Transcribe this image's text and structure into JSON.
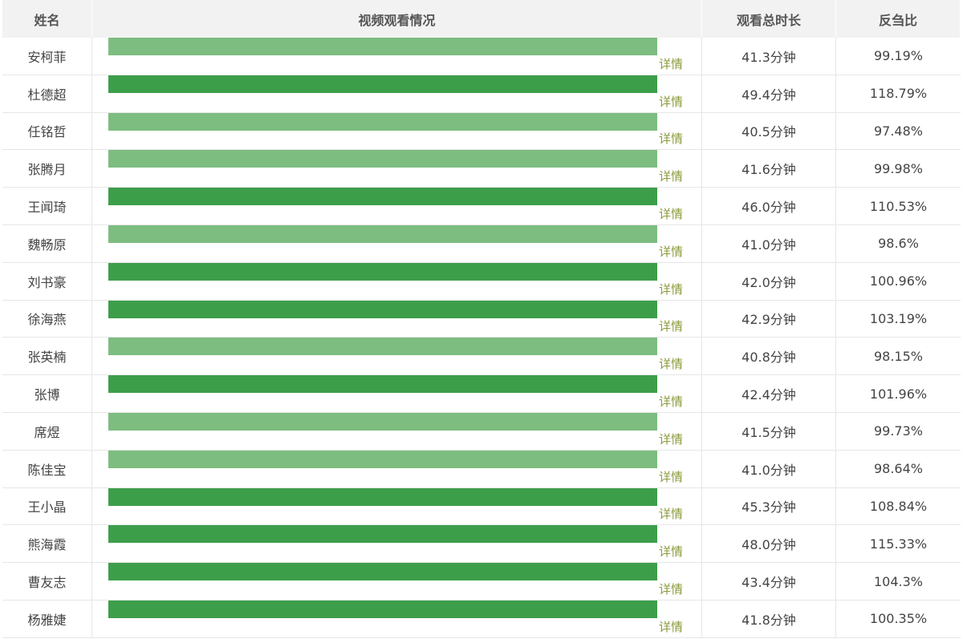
{
  "header": {
    "name": "姓名",
    "video": "视频观看情况",
    "duration": "观看总时长",
    "ratio": "反刍比"
  },
  "colors": {
    "bar_dark": "#3d9e4a",
    "bar_light": "#7dbd80",
    "detail": "#8a9a3a"
  },
  "rows": [
    {
      "name": "安柯菲",
      "detail": "详情",
      "duration": "41.3分钟",
      "ratio": "99.19%",
      "bar_color": "#7dbd80"
    },
    {
      "name": "杜德超",
      "detail": "详情",
      "duration": "49.4分钟",
      "ratio": "118.79%",
      "bar_color": "#3d9e4a"
    },
    {
      "name": "任铭哲",
      "detail": "详情",
      "duration": "40.5分钟",
      "ratio": "97.48%",
      "bar_color": "#7dbd80"
    },
    {
      "name": "张腾月",
      "detail": "详情",
      "duration": "41.6分钟",
      "ratio": "99.98%",
      "bar_color": "#7dbd80"
    },
    {
      "name": "王闻琦",
      "detail": "详情",
      "duration": "46.0分钟",
      "ratio": "110.53%",
      "bar_color": "#3d9e4a"
    },
    {
      "name": "魏畅原",
      "detail": "详情",
      "duration": "41.0分钟",
      "ratio": "98.6%",
      "bar_color": "#7dbd80"
    },
    {
      "name": "刘书豪",
      "detail": "详情",
      "duration": "42.0分钟",
      "ratio": "100.96%",
      "bar_color": "#3d9e4a"
    },
    {
      "name": "徐海燕",
      "detail": "详情",
      "duration": "42.9分钟",
      "ratio": "103.19%",
      "bar_color": "#3d9e4a"
    },
    {
      "name": "张英楠",
      "detail": "详情",
      "duration": "40.8分钟",
      "ratio": "98.15%",
      "bar_color": "#7dbd80"
    },
    {
      "name": "张博",
      "detail": "详情",
      "duration": "42.4分钟",
      "ratio": "101.96%",
      "bar_color": "#3d9e4a"
    },
    {
      "name": "席煜",
      "detail": "详情",
      "duration": "41.5分钟",
      "ratio": "99.73%",
      "bar_color": "#7dbd80"
    },
    {
      "name": "陈佳宝",
      "detail": "详情",
      "duration": "41.0分钟",
      "ratio": "98.64%",
      "bar_color": "#7dbd80"
    },
    {
      "name": "王小晶",
      "detail": "详情",
      "duration": "45.3分钟",
      "ratio": "108.84%",
      "bar_color": "#3d9e4a"
    },
    {
      "name": "熊海霞",
      "detail": "详情",
      "duration": "48.0分钟",
      "ratio": "115.33%",
      "bar_color": "#3d9e4a"
    },
    {
      "name": "曹友志",
      "detail": "详情",
      "duration": "43.4分钟",
      "ratio": "104.3%",
      "bar_color": "#3d9e4a"
    },
    {
      "name": "杨雅婕",
      "detail": "详情",
      "duration": "41.8分钟",
      "ratio": "100.35%",
      "bar_color": "#3d9e4a"
    }
  ]
}
